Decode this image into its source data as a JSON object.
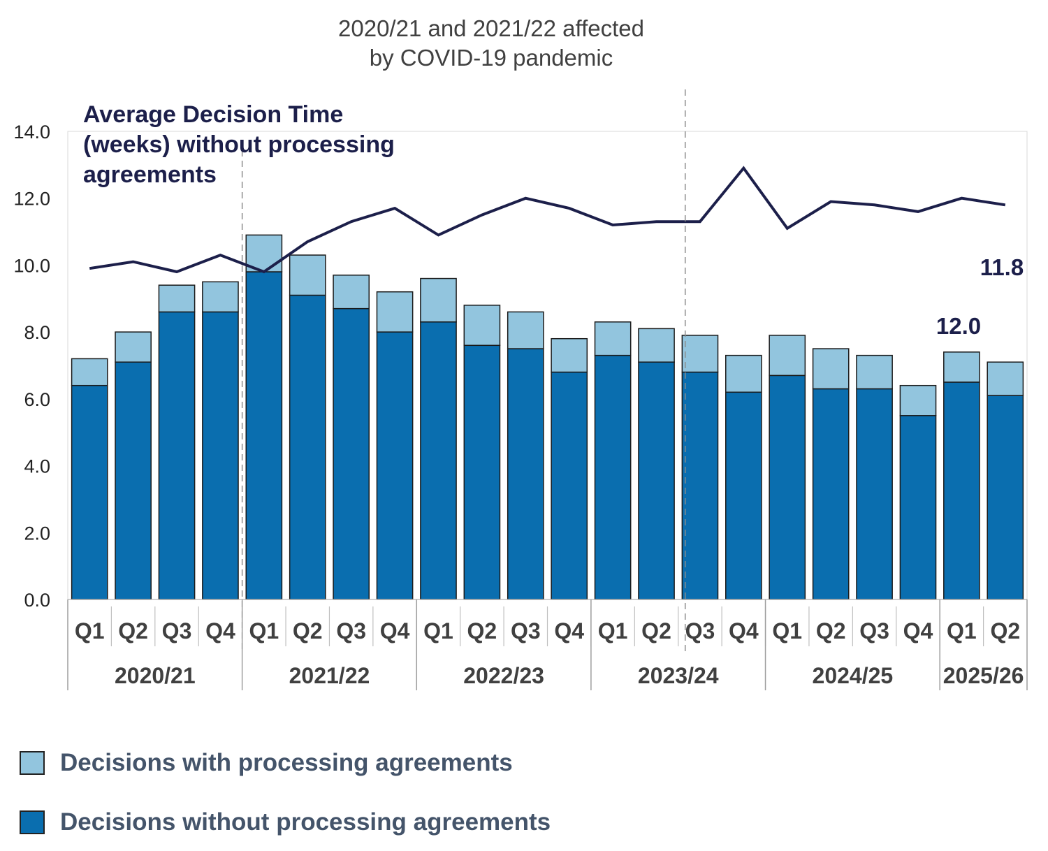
{
  "chart_data": {
    "type": "bar",
    "stacked": true,
    "annotation_top": [
      "2020/21 and 2021/22 affected",
      "by COVID-19 pandemic"
    ],
    "line_label": [
      "Average Decision Time",
      "(weeks) without processing",
      "agreements"
    ],
    "categories": [
      "Q1",
      "Q2",
      "Q3",
      "Q4",
      "Q1",
      "Q2",
      "Q3",
      "Q4",
      "Q1",
      "Q2",
      "Q3",
      "Q4",
      "Q1",
      "Q2",
      "Q3",
      "Q4",
      "Q1",
      "Q2",
      "Q3",
      "Q4",
      "Q1",
      "Q2"
    ],
    "groups": [
      {
        "label": "2020/21",
        "count": 4
      },
      {
        "label": "2021/22",
        "count": 4
      },
      {
        "label": "2022/23",
        "count": 4
      },
      {
        "label": "2023/24",
        "count": 4
      },
      {
        "label": "2024/25",
        "count": 4
      },
      {
        "label": "2025/26",
        "count": 2
      }
    ],
    "series": [
      {
        "name": "Decisions without processing agreements",
        "color": "#0a6eaf",
        "values": [
          6.4,
          7.1,
          8.6,
          8.6,
          9.8,
          9.1,
          8.7,
          8.0,
          8.3,
          7.6,
          7.5,
          6.8,
          7.3,
          7.1,
          6.8,
          6.2,
          6.7,
          6.3,
          6.3,
          5.5,
          6.5,
          6.1
        ]
      },
      {
        "name": "Decisions with processing agreements",
        "color": "#92c5de",
        "values": [
          0.8,
          0.9,
          0.8,
          0.9,
          1.1,
          1.2,
          1.0,
          1.2,
          1.3,
          1.2,
          1.1,
          1.0,
          1.0,
          1.0,
          1.1,
          1.1,
          1.2,
          1.2,
          1.0,
          0.9,
          0.9,
          1.0
        ]
      }
    ],
    "line_series": {
      "color": "#1c1f4a",
      "values": [
        9.9,
        10.1,
        9.8,
        10.3,
        9.8,
        10.7,
        11.3,
        11.7,
        10.9,
        11.5,
        12.0,
        11.7,
        11.2,
        11.3,
        11.3,
        12.9,
        11.1,
        11.9,
        11.8,
        11.6,
        12.0,
        11.8
      ]
    },
    "end_labels": {
      "line_last": "11.8",
      "line_prev": "12.0"
    },
    "ylim": [
      0,
      14
    ],
    "yticks": [
      "0.0",
      "2.0",
      "4.0",
      "6.0",
      "8.0",
      "10.0",
      "12.0",
      "14.0"
    ],
    "covid_marker_after_index": 3,
    "second_marker_after_index": 14,
    "grid": false,
    "legend_position": "bottom-left"
  },
  "legend": {
    "items": [
      {
        "label": "Decisions with processing agreements",
        "color": "#92c5de"
      },
      {
        "label": "Decisions without processing agreements",
        "color": "#0a6eaf"
      }
    ]
  }
}
